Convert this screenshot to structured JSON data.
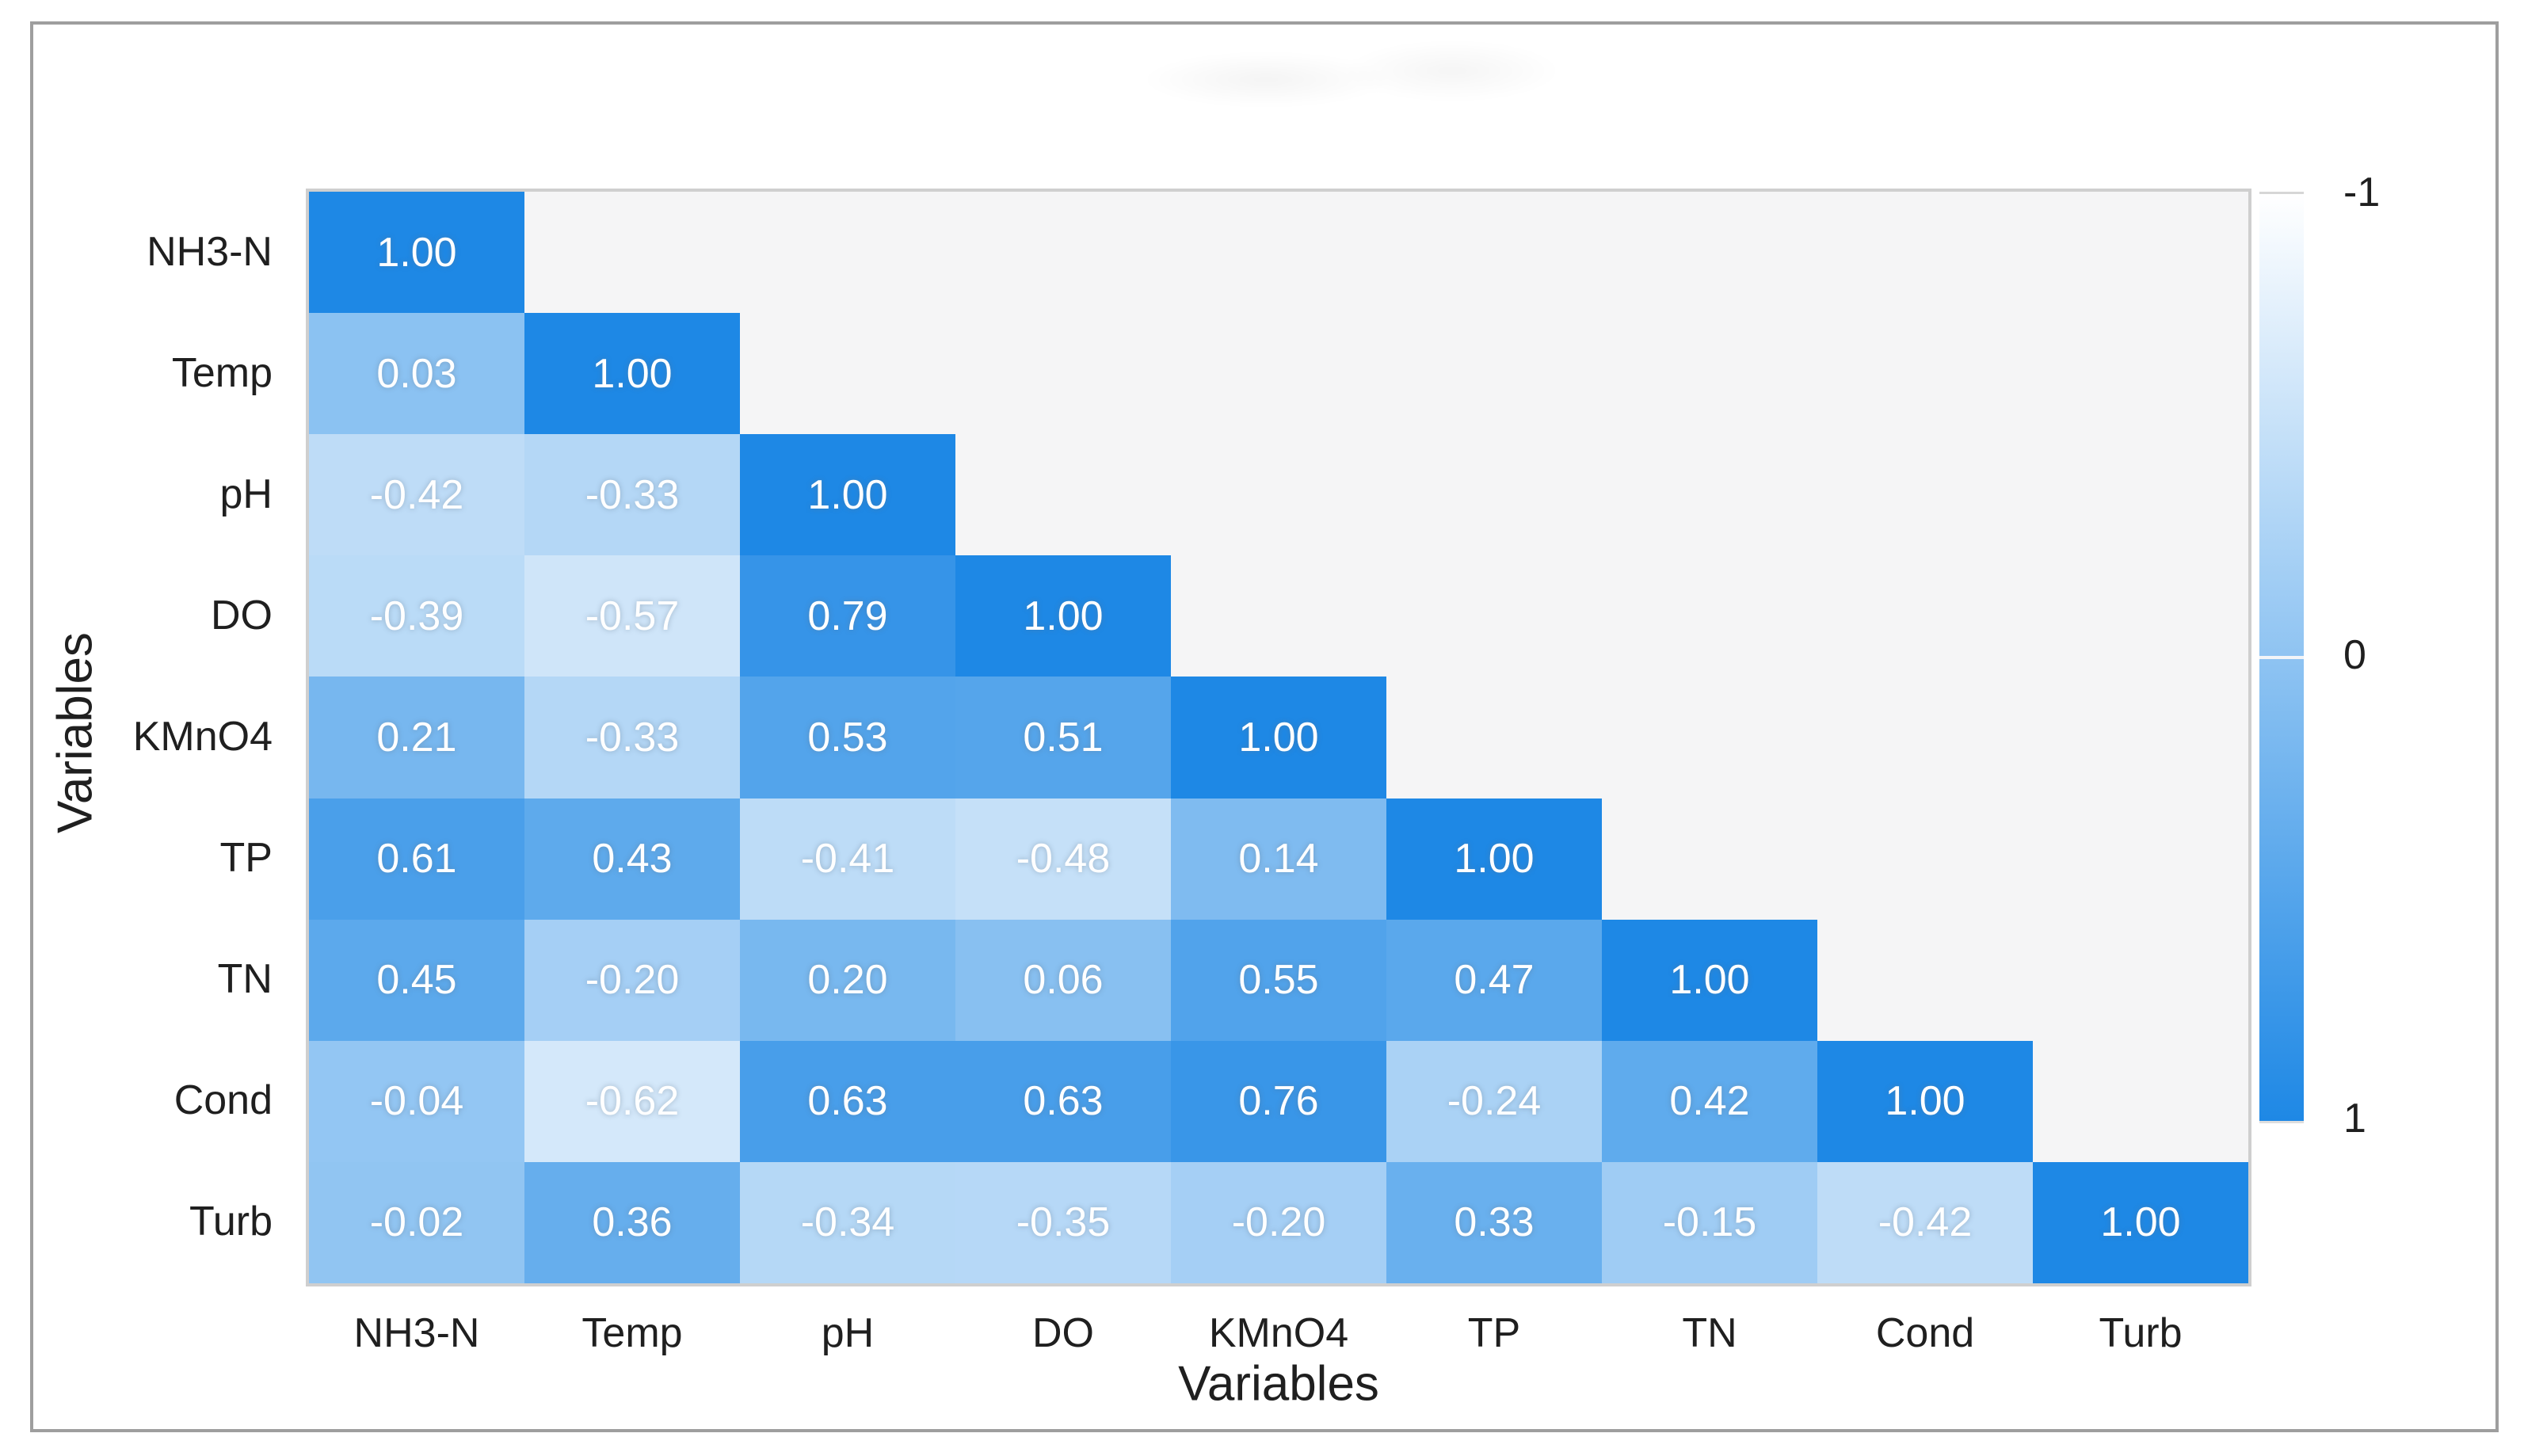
{
  "chart_data": {
    "type": "heatmap",
    "subtype": "correlation-matrix-lower-triangle",
    "title": "",
    "xlabel": "Variables",
    "ylabel": "Variables",
    "variables": [
      "NH3-N",
      "Temp",
      "pH",
      "DO",
      "KMnO4",
      "TP",
      "TN",
      "Cond",
      "Turb"
    ],
    "xticklabels": [
      "NH3-N",
      "Temp",
      "pH",
      "DO",
      "KMnO4",
      "TP",
      "TN",
      "Cond",
      "Turb"
    ],
    "yticklabels": [
      "NH3-N",
      "Temp",
      "pH",
      "DO",
      "KMnO4",
      "TP",
      "TN",
      "Cond",
      "Turb"
    ],
    "matrix_lower_triangle": [
      [
        1.0
      ],
      [
        0.03,
        1.0
      ],
      [
        -0.42,
        -0.33,
        1.0
      ],
      [
        -0.39,
        -0.57,
        0.79,
        1.0
      ],
      [
        0.21,
        -0.33,
        0.53,
        0.51,
        1.0
      ],
      [
        0.61,
        0.43,
        -0.41,
        -0.48,
        0.14,
        1.0
      ],
      [
        0.45,
        -0.2,
        0.2,
        0.06,
        0.55,
        0.47,
        1.0
      ],
      [
        -0.04,
        -0.62,
        0.63,
        0.63,
        0.76,
        -0.24,
        0.42,
        1.0
      ],
      [
        -0.02,
        0.36,
        -0.34,
        -0.35,
        -0.2,
        0.33,
        -0.15,
        -0.42,
        1.0
      ]
    ],
    "value_decimals": 2,
    "colorbar": {
      "position": "right",
      "top_value": -1,
      "bottom_value": 1,
      "ticks": [
        "-1",
        "0",
        "1"
      ],
      "range_min": -1,
      "range_max": 1
    },
    "legend": "none",
    "grid": "off",
    "colors": {
      "value_high": "#1e88e5",
      "value_low": "#ffffff",
      "plot_background": "#f5f5f6",
      "cell_text": "#ffffff",
      "axis_text": "#1f1f1f",
      "frame_border": "#9e9e9e"
    }
  }
}
